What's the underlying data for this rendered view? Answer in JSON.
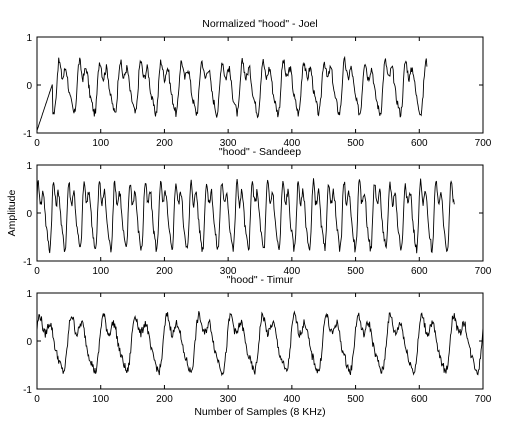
{
  "figure": {
    "ylabel": "Amplitude",
    "xlabel": "Number of Samples (8 KHz)"
  },
  "chart_data": [
    {
      "type": "line",
      "title": "Normalized \"hood\" - Joel",
      "xlim": [
        0,
        700
      ],
      "ylim": [
        -1,
        1
      ],
      "xticks": [
        "0",
        "100",
        "200",
        "300",
        "400",
        "500",
        "600",
        "700"
      ],
      "yticks": [
        "-1",
        "0",
        "1"
      ],
      "grid": false,
      "series": [
        {
          "x_end": 612,
          "period": 32,
          "amplitude": 0.7,
          "color": "#000000"
        }
      ]
    },
    {
      "type": "line",
      "title": "\"hood\" - Sandeep",
      "xlim": [
        0,
        700
      ],
      "ylim": [
        -1,
        1
      ],
      "xticks": [
        "0",
        "100",
        "200",
        "300",
        "400",
        "500",
        "600",
        "700"
      ],
      "yticks": [
        "-1",
        "0",
        "1"
      ],
      "grid": false,
      "series": [
        {
          "x_end": 655,
          "period": 24,
          "amplitude": 0.9,
          "color": "#000000"
        }
      ]
    },
    {
      "type": "line",
      "title": "\"hood\" - Timur",
      "xlim": [
        0,
        700
      ],
      "ylim": [
        -1,
        1
      ],
      "xticks": [
        "0",
        "100",
        "200",
        "300",
        "400",
        "500",
        "600",
        "700"
      ],
      "yticks": [
        "-1",
        "0",
        "1"
      ],
      "grid": false,
      "series": [
        {
          "x_end": 700,
          "period": 50,
          "amplitude": 0.75,
          "color": "#000000"
        }
      ]
    }
  ]
}
